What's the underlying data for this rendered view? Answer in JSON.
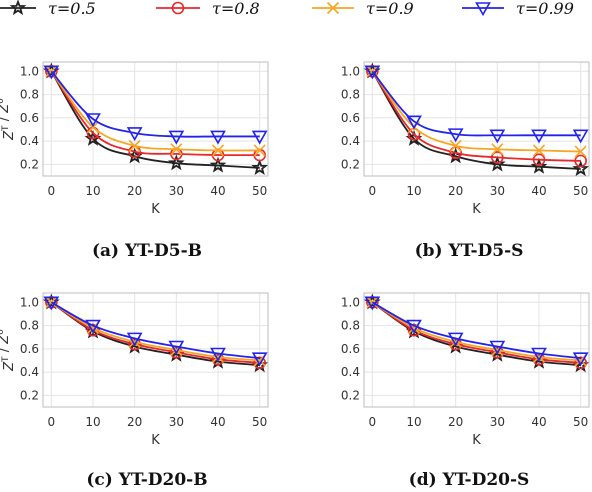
{
  "legend": {
    "entries": [
      {
        "label": "τ=0.5",
        "color": "#222222",
        "marker": "star"
      },
      {
        "label": "τ=0.8",
        "color": "#e8282b",
        "marker": "circle"
      },
      {
        "label": "τ=0.9",
        "color": "#f5a623",
        "marker": "x"
      },
      {
        "label": "τ=0.99",
        "color": "#2323ee",
        "marker": "triangle-down"
      }
    ]
  },
  "chart_data": [
    {
      "type": "line",
      "caption": "(a) YT-D5-B",
      "xlabel": "K",
      "ylabel": "Z^T / Z^0",
      "xlim": [
        -2,
        52
      ],
      "ylim": [
        0.1,
        1.08
      ],
      "xticks": [
        0,
        10,
        20,
        30,
        40,
        50
      ],
      "yticks": [
        0.2,
        0.4,
        0.6,
        0.8,
        1.0
      ],
      "grid": true,
      "x": [
        0,
        10,
        20,
        30,
        40,
        50
      ],
      "series": [
        {
          "name": "τ=0.5",
          "values": [
            1.0,
            0.42,
            0.27,
            0.21,
            0.19,
            0.17
          ]
        },
        {
          "name": "τ=0.8",
          "values": [
            1.0,
            0.47,
            0.31,
            0.29,
            0.28,
            0.28
          ]
        },
        {
          "name": "τ=0.9",
          "values": [
            1.0,
            0.52,
            0.36,
            0.33,
            0.32,
            0.32
          ]
        },
        {
          "name": "τ=0.99",
          "values": [
            1.0,
            0.59,
            0.47,
            0.44,
            0.44,
            0.44
          ]
        }
      ]
    },
    {
      "type": "line",
      "caption": "(b) YT-D5-S",
      "xlabel": "K",
      "ylabel": "",
      "xlim": [
        -2,
        52
      ],
      "ylim": [
        0.1,
        1.08
      ],
      "xticks": [
        0,
        10,
        20,
        30,
        40,
        50
      ],
      "yticks": [
        0.2,
        0.4,
        0.6,
        0.8,
        1.0
      ],
      "grid": true,
      "x": [
        0,
        10,
        20,
        30,
        40,
        50
      ],
      "series": [
        {
          "name": "τ=0.5",
          "values": [
            1.0,
            0.42,
            0.27,
            0.2,
            0.18,
            0.16
          ]
        },
        {
          "name": "τ=0.8",
          "values": [
            1.0,
            0.46,
            0.3,
            0.26,
            0.24,
            0.23
          ]
        },
        {
          "name": "τ=0.9",
          "values": [
            1.0,
            0.52,
            0.36,
            0.33,
            0.32,
            0.31
          ]
        },
        {
          "name": "τ=0.99",
          "values": [
            1.0,
            0.57,
            0.46,
            0.45,
            0.45,
            0.45
          ]
        }
      ]
    },
    {
      "type": "line",
      "caption": "(c) YT-D20-B",
      "xlabel": "K",
      "ylabel": "Z^T / Z^0",
      "xlim": [
        -2,
        52
      ],
      "ylim": [
        0.1,
        1.08
      ],
      "xticks": [
        0,
        10,
        20,
        30,
        40,
        50
      ],
      "yticks": [
        0.2,
        0.4,
        0.6,
        0.8,
        1.0
      ],
      "grid": true,
      "x": [
        0,
        10,
        20,
        30,
        40,
        50
      ],
      "series": [
        {
          "name": "τ=0.5",
          "values": [
            1.0,
            0.75,
            0.62,
            0.55,
            0.49,
            0.46
          ]
        },
        {
          "name": "τ=0.8",
          "values": [
            1.0,
            0.76,
            0.64,
            0.57,
            0.51,
            0.48
          ]
        },
        {
          "name": "τ=0.9",
          "values": [
            1.0,
            0.78,
            0.66,
            0.59,
            0.53,
            0.5
          ]
        },
        {
          "name": "τ=0.99",
          "values": [
            1.0,
            0.8,
            0.69,
            0.62,
            0.56,
            0.52
          ]
        }
      ]
    },
    {
      "type": "line",
      "caption": "(d) YT-D20-S",
      "xlabel": "K",
      "ylabel": "",
      "xlim": [
        -2,
        52
      ],
      "ylim": [
        0.1,
        1.08
      ],
      "xticks": [
        0,
        10,
        20,
        30,
        40,
        50
      ],
      "yticks": [
        0.2,
        0.4,
        0.6,
        0.8,
        1.0
      ],
      "grid": true,
      "x": [
        0,
        10,
        20,
        30,
        40,
        50
      ],
      "series": [
        {
          "name": "τ=0.5",
          "values": [
            1.0,
            0.75,
            0.62,
            0.55,
            0.49,
            0.46
          ]
        },
        {
          "name": "τ=0.8",
          "values": [
            1.0,
            0.76,
            0.64,
            0.57,
            0.51,
            0.48
          ]
        },
        {
          "name": "τ=0.9",
          "values": [
            1.0,
            0.78,
            0.66,
            0.59,
            0.53,
            0.5
          ]
        },
        {
          "name": "τ=0.99",
          "values": [
            1.0,
            0.8,
            0.69,
            0.62,
            0.56,
            0.52
          ]
        }
      ]
    }
  ]
}
